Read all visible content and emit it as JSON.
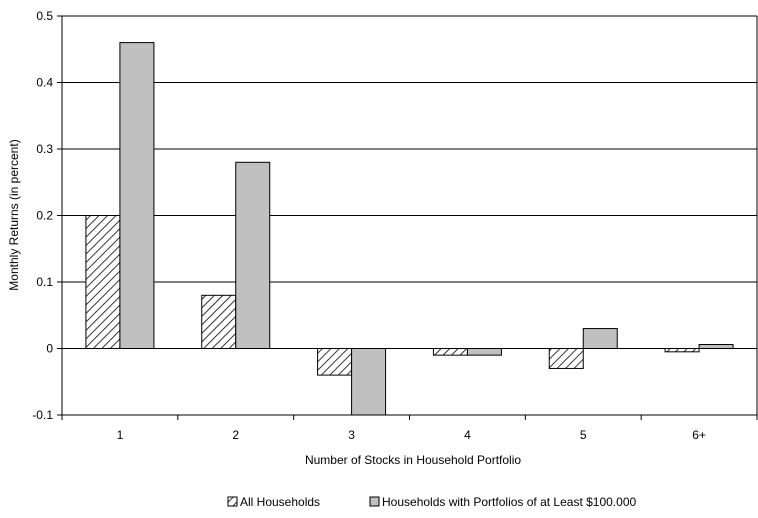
{
  "chart_data": {
    "type": "bar",
    "title": "",
    "xlabel": "Number of Stocks in Household Portfolio",
    "ylabel": "Monthly Returns (in percent)",
    "categories": [
      "1",
      "2",
      "3",
      "4",
      "5",
      "6+"
    ],
    "ylim": [
      -0.1,
      0.5
    ],
    "yticks": [
      "-0.1",
      "0",
      "0.1",
      "0.2",
      "0.3",
      "0.4",
      "0.5"
    ],
    "grid": true,
    "legend_position": "bottom",
    "series": [
      {
        "name": "All Households",
        "values": [
          0.2,
          0.08,
          -0.04,
          -0.01,
          -0.03,
          -0.005
        ],
        "style": "hatched",
        "color": "#ffffff"
      },
      {
        "name": "Households with Portfolios of at Least $100.000",
        "values": [
          0.46,
          0.28,
          -0.1,
          -0.01,
          0.03,
          0.006
        ],
        "style": "solid",
        "color": "#c0c0c0"
      }
    ]
  }
}
